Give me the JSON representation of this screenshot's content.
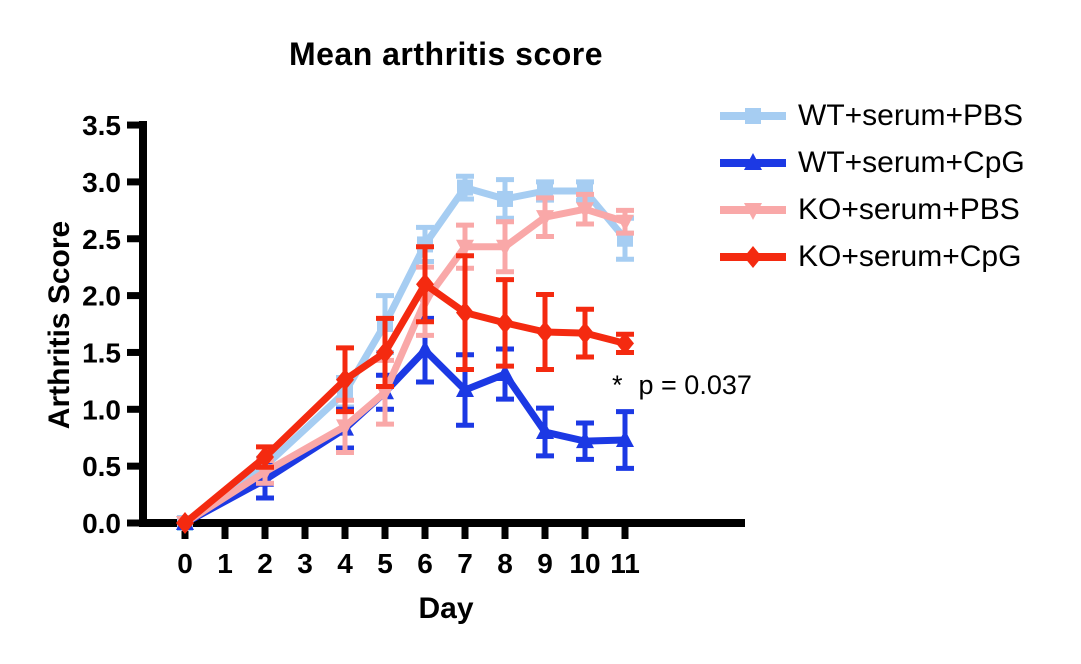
{
  "chart_data": {
    "type": "line",
    "title": "Mean arthritis score",
    "xlabel": "Day",
    "ylabel": "Arthritis Score",
    "xlim": [
      0,
      11
    ],
    "ylim": [
      0.0,
      3.5
    ],
    "x_ticks": [
      "0",
      "1",
      "2",
      "3",
      "4",
      "5",
      "6",
      "7",
      "8",
      "9",
      "10",
      "11"
    ],
    "y_ticks": [
      "0.0",
      "0.5",
      "1.0",
      "1.5",
      "2.0",
      "2.5",
      "3.0",
      "3.5"
    ],
    "grid": false,
    "legend_position": "top-right",
    "x": [
      0,
      2,
      4,
      5,
      6,
      7,
      8,
      9,
      10,
      11
    ],
    "series": [
      {
        "name": "WT+serum+PBS",
        "color": "#A6CDF2",
        "marker": "square",
        "values": [
          0,
          0.5,
          1.15,
          1.75,
          2.45,
          2.95,
          2.85,
          2.92,
          2.92,
          2.5
        ],
        "errors": [
          0,
          0.07,
          0.13,
          0.25,
          0.15,
          0.1,
          0.17,
          0.08,
          0.08,
          0.18
        ]
      },
      {
        "name": "WT+serum+CpG",
        "color": "#1C39E4",
        "marker": "triangle-up",
        "values": [
          0,
          0.38,
          0.83,
          1.15,
          1.52,
          1.17,
          1.31,
          0.8,
          0.72,
          0.73
        ],
        "errors": [
          0,
          0.16,
          0.17,
          0.15,
          0.28,
          0.31,
          0.22,
          0.21,
          0.16,
          0.25
        ]
      },
      {
        "name": "KO+serum+PBS",
        "color": "#F9A8A8",
        "marker": "triangle-down",
        "values": [
          0,
          0.45,
          0.85,
          1.15,
          1.95,
          2.43,
          2.43,
          2.69,
          2.76,
          2.65
        ],
        "errors": [
          0,
          0.1,
          0.23,
          0.28,
          0.3,
          0.19,
          0.22,
          0.17,
          0.13,
          0.1
        ]
      },
      {
        "name": "KO+serum+CpG",
        "color": "#F42A10",
        "marker": "diamond",
        "values": [
          0,
          0.58,
          1.26,
          1.5,
          2.1,
          1.85,
          1.76,
          1.68,
          1.67,
          1.58
        ],
        "errors": [
          0,
          0.09,
          0.28,
          0.3,
          0.33,
          0.5,
          0.38,
          0.33,
          0.21,
          0.08
        ]
      }
    ],
    "annotation": {
      "star": "*",
      "text": "p = 0.037"
    }
  }
}
